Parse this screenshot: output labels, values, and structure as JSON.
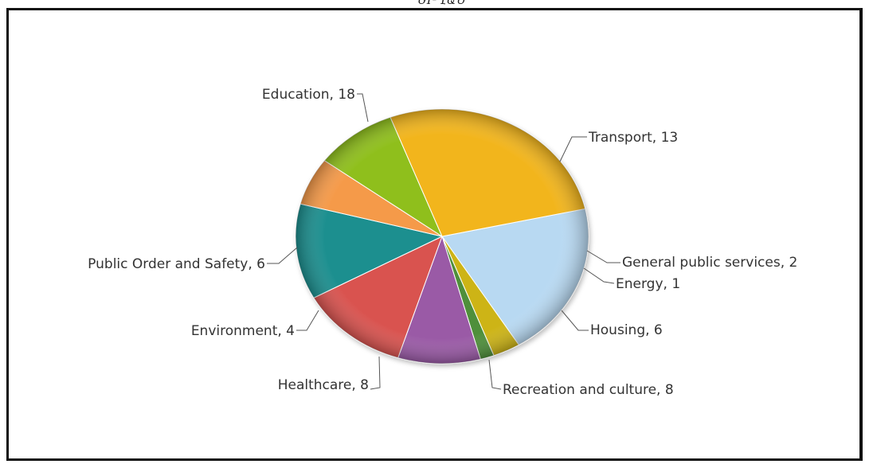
{
  "page": {
    "title_fragment": "ԵՐՂԱՆ"
  },
  "chart_data": {
    "type": "pie",
    "title": "",
    "legend": "none",
    "slices": [
      {
        "label": "Transport",
        "value": 13,
        "color": "#b8d9f2",
        "display": "Transport, 13"
      },
      {
        "label": "General public services",
        "value": 2,
        "color": "#cdb418",
        "display": "General public services, 2"
      },
      {
        "label": "Energy",
        "value": 1,
        "color": "#4f8f3a",
        "display": "Energy, 1"
      },
      {
        "label": "Housing",
        "value": 6,
        "color": "#9a5aa6",
        "display": "Housing, 6"
      },
      {
        "label": "Recreation and culture",
        "value": 8,
        "color": "#d9534f",
        "display": "Recreation and culture, 8"
      },
      {
        "label": "Healthcare",
        "value": 8,
        "color": "#1f8f8f",
        "display": "Healthcare, 8"
      },
      {
        "label": "Environment",
        "value": 4,
        "color": "#f59a4a",
        "display": "Environment, 4"
      },
      {
        "label": "Public Order and Safety",
        "value": 6,
        "color": "#8fbf1a",
        "display": "Public Order and Safety, 6"
      },
      {
        "label": "Education",
        "value": 18,
        "color": "#f2b51f",
        "display": "Education, 18"
      }
    ]
  }
}
